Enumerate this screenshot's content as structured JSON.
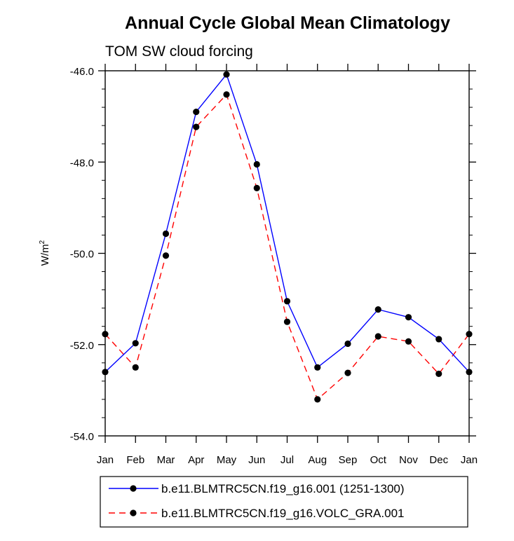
{
  "chart_data": {
    "type": "line",
    "title": "Annual Cycle Global Mean Climatology",
    "subtitle": "TOM SW cloud forcing",
    "ylabel": "W/m",
    "ylabel_superscript": "2",
    "categories": [
      "Jan",
      "Feb",
      "Mar",
      "Apr",
      "May",
      "Jun",
      "Jul",
      "Aug",
      "Sep",
      "Oct",
      "Nov",
      "Dec",
      "Jan"
    ],
    "ylim": [
      -54.0,
      -46.0
    ],
    "yticks": [
      -54.0,
      -52.0,
      -50.0,
      -48.0,
      -46.0
    ],
    "ytick_labels": [
      "-54.0",
      "-52.0",
      "-50.0",
      "-48.0",
      "-46.0"
    ],
    "series": [
      {
        "name": "b.e11.BLMTRC5CN.f19_g16.001 (1251-1300)",
        "color": "#0000ff",
        "dash": "solid",
        "values": [
          -52.6,
          -51.97,
          -49.57,
          -46.9,
          -46.08,
          -48.05,
          -51.05,
          -52.5,
          -51.98,
          -51.23,
          -51.4,
          -51.88,
          -52.6
        ]
      },
      {
        "name": "b.e11.BLMTRC5CN.f19_g16.VOLC_GRA.001",
        "color": "#ff0000",
        "dash": "dashed",
        "values": [
          -51.77,
          -52.5,
          -50.05,
          -47.23,
          -46.52,
          -48.57,
          -51.5,
          -53.2,
          -52.62,
          -51.82,
          -51.93,
          -52.64,
          -51.77
        ]
      }
    ]
  }
}
